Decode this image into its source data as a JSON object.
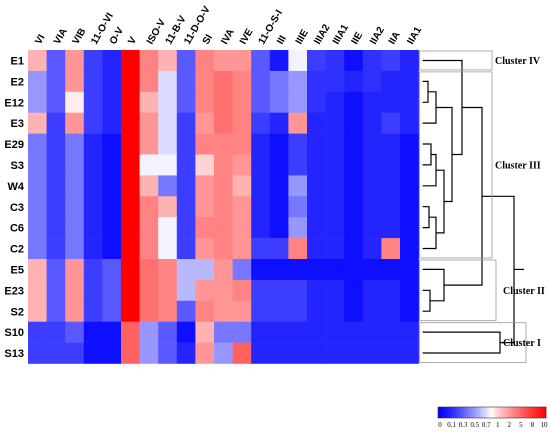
{
  "chart_data": {
    "type": "heatmap",
    "columns": [
      "VI",
      "VIA",
      "VIB",
      "11-O-VI",
      "O-V",
      "V",
      "ISO-V",
      "11-B-V",
      "11-D-O-V",
      "SI",
      "IVA",
      "IVE",
      "11-O-S-I",
      "III",
      "IIIE",
      "IIIA2",
      "IIIA1",
      "IIE",
      "IIA2",
      "IIA",
      "IIA1"
    ],
    "rows": [
      "E1",
      "E2",
      "E12",
      "E3",
      "E29",
      "S3",
      "W4",
      "C3",
      "C6",
      "C2",
      "E5",
      "E23",
      "S2",
      "S10",
      "S13"
    ],
    "values": [
      [
        1.5,
        0.3,
        2,
        0.2,
        0.1,
        10,
        3,
        1.5,
        0.3,
        3,
        2,
        2,
        0.3,
        0.07,
        0.8,
        0.2,
        0.15,
        0.05,
        0.15,
        0.2,
        0.1
      ],
      [
        0.5,
        0.3,
        2,
        0.2,
        0.1,
        10,
        3,
        0.7,
        0.3,
        3,
        4,
        3,
        0.3,
        0.4,
        0.5,
        0.15,
        0.15,
        0.1,
        0.15,
        0.1,
        0.1
      ],
      [
        0.5,
        0.3,
        0.9,
        0.2,
        0.1,
        10,
        1.5,
        0.7,
        0.3,
        3,
        4,
        3,
        0.3,
        0.4,
        0.5,
        0.15,
        0.1,
        0.05,
        0.1,
        0.1,
        0.1
      ],
      [
        1.5,
        0.2,
        2,
        0.2,
        0.1,
        10,
        2,
        0.7,
        0.2,
        2,
        4,
        3,
        0.2,
        0.1,
        2,
        0.1,
        0.1,
        0.05,
        0.1,
        0.2,
        0.1
      ],
      [
        0.4,
        0.2,
        0.4,
        0.1,
        0.05,
        10,
        2,
        0.7,
        0.2,
        3,
        3,
        3,
        0.1,
        0.05,
        0.2,
        0.1,
        0.1,
        0.05,
        0.1,
        0.1,
        0.05
      ],
      [
        0.4,
        0.2,
        0.4,
        0.1,
        0.05,
        10,
        0.8,
        0.8,
        0.2,
        1,
        3,
        2,
        0.1,
        0.05,
        0.2,
        0.1,
        0.1,
        0.05,
        0.1,
        0.1,
        0.05
      ],
      [
        0.4,
        0.2,
        0.4,
        0.1,
        0.05,
        10,
        1.5,
        0.4,
        0.2,
        2,
        3,
        1.5,
        0.1,
        0.05,
        0.5,
        0.1,
        0.1,
        0.05,
        0.1,
        0.1,
        0.05
      ],
      [
        0.4,
        0.2,
        0.4,
        0.1,
        0.05,
        10,
        3,
        1.5,
        0.2,
        2,
        3,
        2,
        0.1,
        0.05,
        0.4,
        0.1,
        0.1,
        0.05,
        0.1,
        0.1,
        0.05
      ],
      [
        0.4,
        0.2,
        0.4,
        0.1,
        0.05,
        10,
        3,
        0.8,
        0.2,
        3,
        3,
        2,
        0.1,
        0.05,
        0.5,
        0.1,
        0.1,
        0.05,
        0.1,
        0.1,
        0.05
      ],
      [
        0.4,
        0.2,
        0.4,
        0.1,
        0.05,
        10,
        3,
        0.8,
        0.2,
        2,
        3,
        2,
        0.2,
        0.2,
        3,
        0.1,
        0.1,
        0.05,
        0.1,
        3,
        0.05
      ],
      [
        1.5,
        0.3,
        2,
        0.2,
        0.3,
        10,
        4,
        3,
        0.6,
        0.6,
        2,
        0.4,
        0.05,
        0.05,
        0.05,
        0.05,
        0.05,
        0.05,
        0.05,
        0.05,
        0.05
      ],
      [
        1.5,
        0.3,
        2,
        0.2,
        0.3,
        10,
        4,
        3,
        0.6,
        2,
        2,
        3,
        0.2,
        0.2,
        0.2,
        0.1,
        0.1,
        0.05,
        0.1,
        0.1,
        0.05
      ],
      [
        1.5,
        0.3,
        2,
        0.2,
        0.3,
        10,
        4,
        3,
        0.3,
        3,
        2,
        2,
        0.2,
        0.2,
        0.2,
        0.1,
        0.1,
        0.05,
        0.1,
        0.1,
        0.05
      ],
      [
        0.2,
        0.2,
        0.3,
        0.05,
        0.05,
        5,
        0.5,
        0.3,
        0.05,
        1.5,
        0.4,
        0.4,
        0.1,
        0.1,
        0.1,
        0.1,
        0.1,
        0.1,
        0.1,
        0.1,
        0.1
      ],
      [
        0.2,
        0.2,
        0.2,
        0.05,
        0.05,
        5,
        0.5,
        0.3,
        0.1,
        2,
        0.5,
        5,
        0.1,
        0.1,
        0.1,
        0.1,
        0.1,
        0.1,
        0.1,
        0.1,
        0.1
      ]
    ],
    "clusters": [
      {
        "label": "Cluster IV",
        "rows": [
          "E1"
        ]
      },
      {
        "label": "Cluster III",
        "rows": [
          "E2",
          "E12",
          "E3",
          "E29",
          "S3",
          "W4",
          "C3",
          "C6",
          "C2"
        ]
      },
      {
        "label": "Cluster II",
        "rows": [
          "E5",
          "E23",
          "S2"
        ]
      },
      {
        "label": "Cluster I",
        "rows": [
          "S10",
          "S13"
        ]
      }
    ],
    "color_scale": {
      "ticks": [
        "0",
        "0.1",
        "0.3",
        "0.5",
        "0.7",
        "1",
        "2",
        "5",
        "8",
        "10"
      ],
      "low_color": "#0000ff",
      "mid_color": "#ffffff",
      "high_color": "#ff0000"
    }
  }
}
